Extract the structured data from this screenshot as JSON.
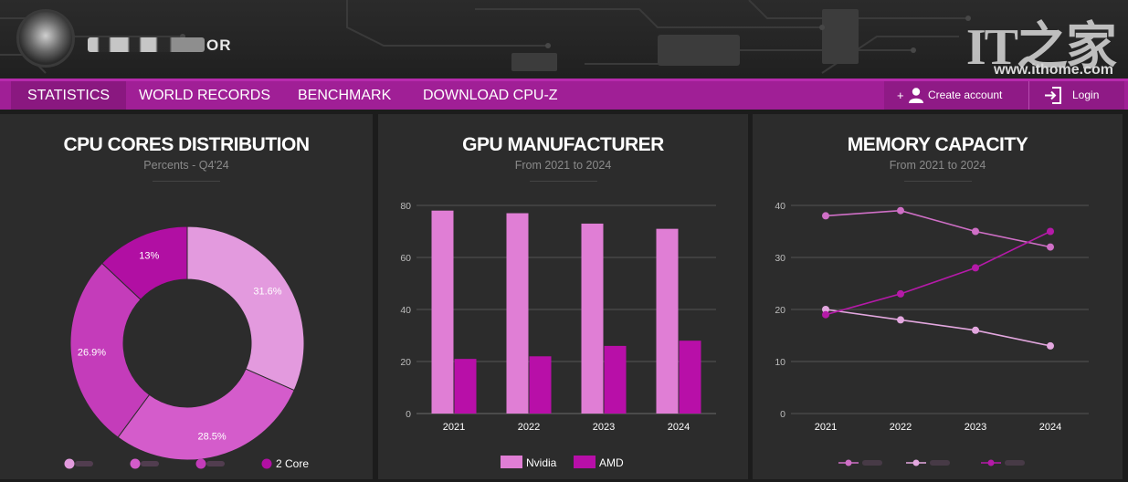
{
  "header": {
    "logo_text_suffix": "OR",
    "watermark_logo": "IT之家",
    "watermark_url": "www.ithome.com"
  },
  "nav": {
    "items": [
      {
        "label": "STATISTICS",
        "active": true
      },
      {
        "label": "WORLD RECORDS",
        "active": false
      },
      {
        "label": "BENCHMARK",
        "active": false
      },
      {
        "label": "DOWNLOAD CPU-Z",
        "active": false
      }
    ],
    "create_account": "Create account",
    "login": "Login",
    "plus": "+"
  },
  "colors": {
    "accent": "#a01f96",
    "nvidia": "#e07ed5",
    "amd": "#b80fa8",
    "donut": [
      "#e39ade",
      "#d45ccb",
      "#c43cba",
      "#b10fa3"
    ]
  },
  "chart_data": [
    {
      "type": "pie",
      "variant": "donut",
      "title": "CPU CORES DISTRIBUTION",
      "subtitle": "Percents - Q4'24",
      "slices": [
        {
          "label": "31.6%",
          "value": 31.6
        },
        {
          "label": "28.5%",
          "value": 28.5
        },
        {
          "label": "26.9%",
          "value": 26.9
        },
        {
          "label": "13%",
          "value": 13.0
        }
      ],
      "legend": {
        "placement": "bottom",
        "entries": [
          "",
          "",
          "",
          "2 Core"
        ]
      }
    },
    {
      "type": "bar",
      "title": "GPU MANUFACTURER",
      "subtitle": "From 2021 to 2024",
      "categories": [
        "2021",
        "2022",
        "2023",
        "2024"
      ],
      "series": [
        {
          "name": "Nvidia",
          "values": [
            78,
            77,
            73,
            71
          ]
        },
        {
          "name": "AMD",
          "values": [
            21,
            22,
            26,
            28
          ]
        }
      ],
      "ylim": [
        0,
        80
      ],
      "yticks": [
        "0",
        "20",
        "40",
        "60",
        "80"
      ],
      "grid": true,
      "legend": {
        "placement": "bottom"
      }
    },
    {
      "type": "line",
      "title": "MEMORY CAPACITY",
      "subtitle": "From 2021 to 2024",
      "categories": [
        "2021",
        "2022",
        "2023",
        "2024"
      ],
      "series": [
        {
          "values": [
            38,
            39,
            35,
            32
          ],
          "color": "#cf6fc6"
        },
        {
          "values": [
            20,
            18,
            16,
            13
          ],
          "color": "#e3a7df"
        },
        {
          "values": [
            19,
            23,
            28,
            35
          ],
          "color": "#b51aa8"
        }
      ],
      "ylim": [
        0,
        40
      ],
      "yticks": [
        "0",
        "10",
        "20",
        "30",
        "40"
      ],
      "grid": true,
      "legend": {
        "placement": "bottom"
      }
    }
  ]
}
